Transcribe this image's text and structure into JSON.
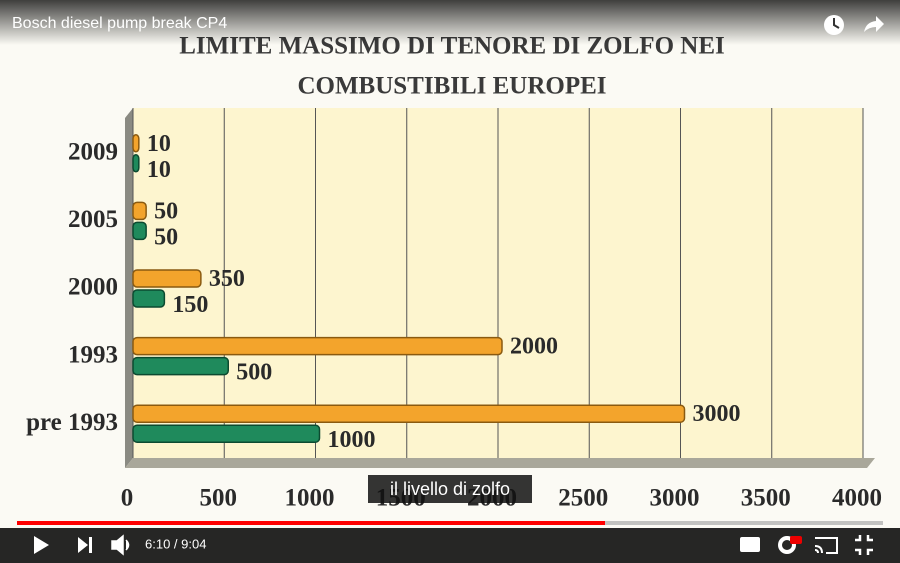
{
  "player": {
    "video_title": "Bosch diesel pump break CP4",
    "caption": "il livello di zolfo",
    "time": "6:10 / 9:04"
  },
  "chart_data": {
    "type": "bar",
    "orientation": "horizontal",
    "title": [
      "LIMITE MASSIMO DI TENORE DI ZOLFO NEI",
      "COMBUSTIBILI EUROPEI"
    ],
    "categories": [
      "2009",
      "2005",
      "2000",
      "1993",
      "pre 1993"
    ],
    "series": [
      {
        "color": "#f3a42c",
        "values": [
          10,
          50,
          350,
          2000,
          3000
        ]
      },
      {
        "color": "#1f8a5c",
        "values": [
          10,
          50,
          150,
          500,
          1000
        ]
      }
    ],
    "xlim": [
      0,
      4000
    ],
    "xticks": [
      0,
      500,
      1000,
      1500,
      2000,
      2500,
      3000,
      3500,
      4000
    ],
    "grid": true
  }
}
